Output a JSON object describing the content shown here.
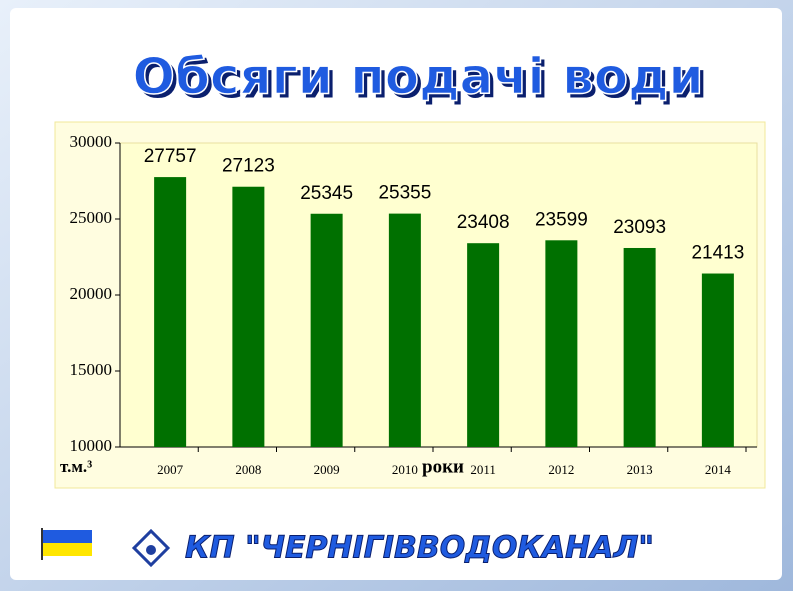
{
  "chart_data": {
    "type": "bar",
    "title": "Обсяги подачі води",
    "categories": [
      "2007",
      "2008",
      "2009",
      "2010",
      "2011",
      "2012",
      "2013",
      "2014"
    ],
    "values": [
      27757,
      27123,
      25345,
      25355,
      23408,
      23599,
      23093,
      21413
    ],
    "color": "#007000",
    "ylim": [
      10000,
      30000
    ],
    "yticks": [
      10000,
      15000,
      20000,
      25000,
      30000
    ],
    "y_label": "т.м.³",
    "x_label": "роки",
    "footer": "КП \"ЧЕРНІГІВВОДОКАНАЛ\""
  }
}
